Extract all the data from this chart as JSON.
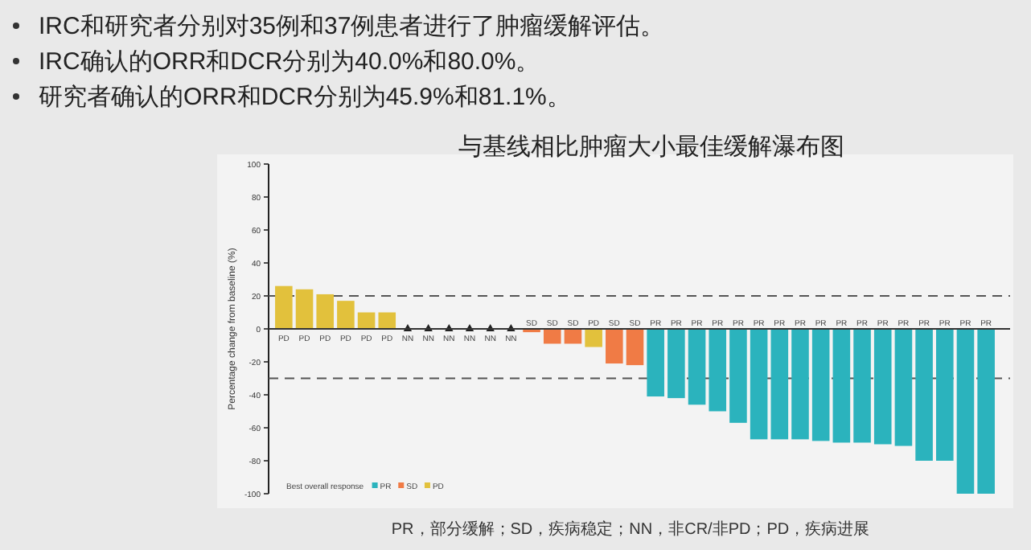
{
  "chart_data": {
    "type": "bar",
    "title": "与基线相比肿瘤大小最佳缓解瀑布图",
    "ylabel": "Percentage change from baseline (%)",
    "legend_title": "Best overall response",
    "legend": "bottom left",
    "annotations": [
      "IRC和研究者分别对35例和37例患者进行了肿瘤缓解评估。",
      "IRC确认的ORR和DCR分别为40.0%和80.0%。",
      "研究者确认的ORR和DCR分别为45.9%和81.1%。",
      "PR，部分缓解；SD，疾病稳定；NN，非CR/非PD；PD，疾病进展"
    ],
    "categories": [
      "PD",
      "PD",
      "PD",
      "PD",
      "PD",
      "PD",
      "NN",
      "NN",
      "NN",
      "NN",
      "NN",
      "NN",
      "SD",
      "SD",
      "SD",
      "PD",
      "SD",
      "SD",
      "PR",
      "PR",
      "PR",
      "PR",
      "PR",
      "PR",
      "PR",
      "PR",
      "PR",
      "PR",
      "PR",
      "PR",
      "PR",
      "PR",
      "PR",
      "PR",
      "PR"
    ],
    "series": [
      {
        "name": "PR",
        "type": "bar",
        "color": "#2bb3bd",
        "values": [
          null,
          null,
          null,
          null,
          null,
          null,
          null,
          null,
          null,
          null,
          null,
          null,
          null,
          null,
          null,
          null,
          null,
          null,
          -41,
          -42,
          -46,
          -50,
          -57,
          -67,
          -67,
          -67,
          -68,
          -69,
          -69,
          -70,
          -71,
          -80,
          -80,
          -100,
          -100
        ]
      },
      {
        "name": "SD",
        "type": "bar",
        "color": "#f07b45",
        "values": [
          null,
          null,
          null,
          null,
          null,
          null,
          null,
          null,
          null,
          null,
          null,
          null,
          -2,
          -9,
          -9,
          null,
          -21,
          -22,
          null,
          null,
          null,
          null,
          null,
          null,
          null,
          null,
          null,
          null,
          null,
          null,
          null,
          null,
          null,
          null,
          null
        ]
      },
      {
        "name": "PD",
        "type": "bar",
        "color": "#e2c13c",
        "values": [
          26,
          24,
          21,
          17,
          10,
          10,
          null,
          null,
          null,
          null,
          null,
          null,
          null,
          null,
          null,
          -11,
          null,
          null,
          null,
          null,
          null,
          null,
          null,
          null,
          null,
          null,
          null,
          null,
          null,
          null,
          null,
          null,
          null,
          null,
          null
        ]
      },
      {
        "type": "scatter",
        "marker": "triangle",
        "color": "#222222",
        "values": [
          null,
          null,
          null,
          null,
          null,
          null,
          0,
          0,
          0,
          0,
          0,
          0,
          null,
          null,
          null,
          null,
          null,
          null,
          null,
          null,
          null,
          null,
          null,
          null,
          null,
          null,
          null,
          null,
          null,
          null,
          null,
          null,
          null,
          null,
          null
        ]
      }
    ],
    "ylim": [
      -100,
      100
    ],
    "yticks": [
      -100,
      -80,
      -60,
      -40,
      -20,
      0,
      20,
      40,
      60,
      80,
      100
    ],
    "ref_lines": [
      {
        "axis": "y",
        "value": 20,
        "line_style": "dashed",
        "color": "#555555"
      },
      {
        "axis": "y",
        "value": -30,
        "line_style": "dashed",
        "color": "#555555"
      }
    ],
    "grid": false
  }
}
